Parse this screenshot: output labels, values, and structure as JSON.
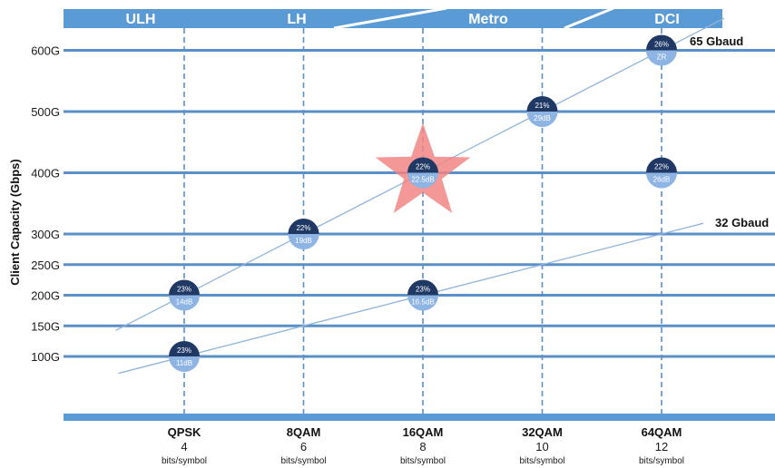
{
  "chart_data": {
    "type": "scatter",
    "title": "",
    "ylabel": "Client Capacity (Gbps)",
    "xlabel": "",
    "segments": [
      "ULH",
      "LH",
      "Metro",
      "DCI"
    ],
    "y_ticks": [
      "600G",
      "500G",
      "400G",
      "300G",
      "250G",
      "200G",
      "150G",
      "100G"
    ],
    "y_tick_values": [
      600,
      500,
      400,
      300,
      250,
      200,
      150,
      100
    ],
    "categories": [
      {
        "modulation": "QPSK",
        "bits": "4",
        "unit": "bits/symbol"
      },
      {
        "modulation": "8QAM",
        "bits": "6",
        "unit": "bits/symbol"
      },
      {
        "modulation": "16QAM",
        "bits": "8",
        "unit": "bits/symbol"
      },
      {
        "modulation": "32QAM",
        "bits": "10",
        "unit": "bits/symbol"
      },
      {
        "modulation": "64QAM",
        "bits": "12",
        "unit": "bits/symbol"
      }
    ],
    "series": [
      {
        "name": "65 Gbaud",
        "points": [
          {
            "x": 4,
            "y": 200,
            "top": "23%",
            "bottom": "14dB"
          },
          {
            "x": 6,
            "y": 300,
            "top": "22%",
            "bottom": "19dB"
          },
          {
            "x": 8,
            "y": 400,
            "top": "22%",
            "bottom": "22.5dB",
            "highlight": true
          },
          {
            "x": 10,
            "y": 500,
            "top": "21%",
            "bottom": "29dB"
          },
          {
            "x": 12,
            "y": 600,
            "top": "26%",
            "bottom": "ZR"
          }
        ]
      },
      {
        "name": "32 Gbaud",
        "points": [
          {
            "x": 4,
            "y": 100,
            "top": "23%",
            "bottom": "11dB"
          },
          {
            "x": 8,
            "y": 200,
            "top": "23%",
            "bottom": "16.5dB"
          }
        ]
      }
    ],
    "extra_points": [
      {
        "x": 12,
        "y": 400,
        "top": "22%",
        "bottom": "26dB"
      }
    ],
    "colors": {
      "banner": "#5b9bd5",
      "gridline": "#5b8fc7",
      "trend": "#8fb4dc",
      "dot_top": "#1f3864",
      "dot_bottom": "#8eb4e3",
      "star": "#f28585"
    }
  }
}
